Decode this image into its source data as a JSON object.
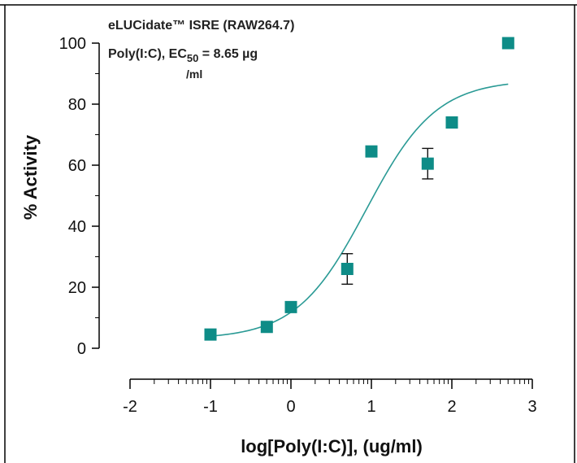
{
  "chart_data": {
    "type": "scatter",
    "title": {
      "line1_prefix": "eLUCidate™ ",
      "line1_bold": "ISRE",
      "line1_suffix": " (RAW264.7)",
      "line2_prefix": "Poly(I:C), EC",
      "line2_sub": "50",
      "line2_suffix": " = 8.65 µg",
      "line3": "/ml"
    },
    "xlabel": "log[Poly(I:C)], (ug/ml)",
    "ylabel": "% Activity",
    "xlim": [
      -2,
      3
    ],
    "ylim": [
      0,
      100
    ],
    "xticks": [
      "-2",
      "-1",
      "0",
      "1",
      "2",
      "3"
    ],
    "yticks": [
      "0",
      "20",
      "40",
      "60",
      "80",
      "100"
    ],
    "marker_color": "#0e8c87",
    "curve_color": "#2a9a95",
    "points": [
      {
        "x": -1.0,
        "y": 4.5,
        "err": 0
      },
      {
        "x": -0.3,
        "y": 7,
        "err": 0
      },
      {
        "x": 0.0,
        "y": 13.5,
        "err": 0
      },
      {
        "x": 0.7,
        "y": 26,
        "err": 5
      },
      {
        "x": 1.0,
        "y": 64.5,
        "err": 0
      },
      {
        "x": 1.7,
        "y": 60.5,
        "err": 5
      },
      {
        "x": 2.0,
        "y": 74,
        "err": 0
      },
      {
        "x": 2.7,
        "y": 100,
        "err": 0
      }
    ],
    "fit": {
      "bottom": 3,
      "top": 88,
      "log_ec50": 0.937,
      "hill": 1.0,
      "x_start": -1.0,
      "x_end": 2.7
    }
  }
}
